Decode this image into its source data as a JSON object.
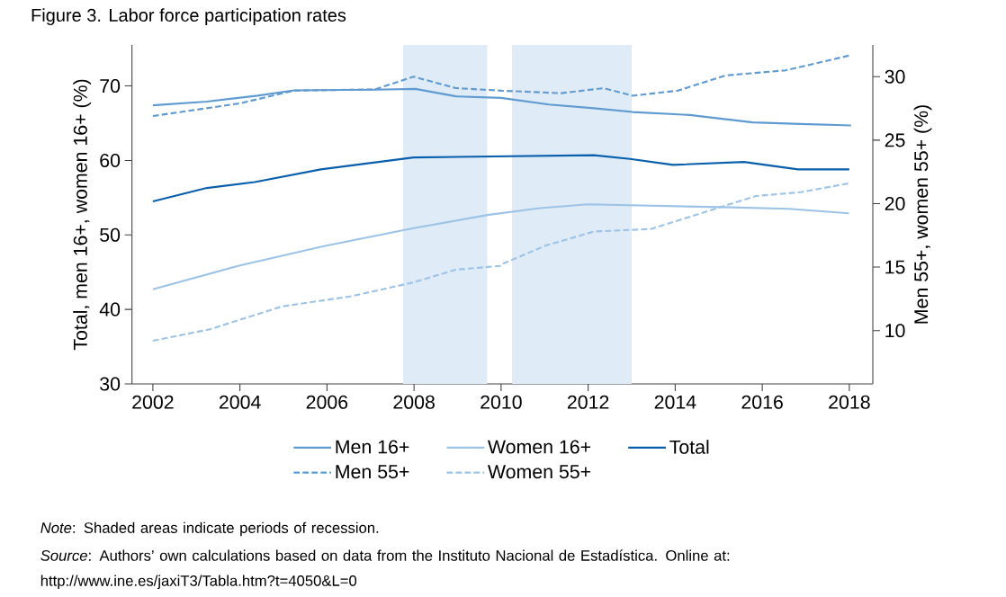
{
  "chart_data": {
    "type": "line",
    "title": "Figure 3. Labor force participation rates",
    "ylabel": "Total, men 16+, women 16+ (%)",
    "y2label": "Men 55+, women 55+ (%)",
    "xlim": [
      2001.52,
      2018.54
    ],
    "xticks": [
      2002,
      2004,
      2006,
      2008,
      2010,
      2012,
      2014,
      2016,
      2018
    ],
    "ylim": [
      30,
      75.5
    ],
    "yticks": [
      30,
      40,
      50,
      60,
      70
    ],
    "y2lim": [
      5.8,
      32.5
    ],
    "y2ticks": [
      10,
      15,
      20,
      25,
      30
    ],
    "legend": "bottom",
    "series": [
      {
        "name": "Men 16+",
        "color": "#5f9bd1",
        "line_style": "solid",
        "axis": "y",
        "x": [
          2002,
          2003.24,
          2004.41,
          2005.24,
          2007.1,
          2008.03,
          2008.96,
          2010.0,
          2011.1,
          2012.13,
          2013.02,
          2014.33,
          2015.78,
          2016.88,
          2018.04
        ],
        "values": [
          67.4,
          67.9,
          68.7,
          69.4,
          69.5,
          69.6,
          68.6,
          68.4,
          67.5,
          67.0,
          66.5,
          66.1,
          65.1,
          64.9,
          64.7
        ]
      },
      {
        "name": "Women 16+",
        "color": "#9dc3e6",
        "line_style": "solid",
        "axis": "y",
        "x": [
          2002,
          2004.0,
          2005.93,
          2007.99,
          2009.72,
          2010.89,
          2011.99,
          2015.3,
          2016.61,
          2017.99
        ],
        "values": [
          42.7,
          45.9,
          48.5,
          50.9,
          52.7,
          53.6,
          54.1,
          53.7,
          53.5,
          52.9
        ]
      },
      {
        "name": "Total",
        "color": "#0a5fac",
        "line_style": "solid",
        "axis": "y",
        "x": [
          2002,
          2003.24,
          2004.34,
          2005.86,
          2007.99,
          2012.13,
          2012.96,
          2013.95,
          2015.58,
          2016.82,
          2018
        ],
        "values": [
          54.5,
          56.3,
          57.1,
          58.8,
          60.4,
          60.7,
          60.2,
          59.4,
          59.8,
          58.8,
          58.8
        ]
      },
      {
        "name": "Men 55+",
        "color": "#5f9bd1",
        "line_style": "dashed",
        "axis": "y2",
        "x": [
          2002,
          2004.0,
          2005.24,
          2007.1,
          2007.99,
          2008.96,
          2010.0,
          2011.38,
          2012.36,
          2013.02,
          2014.06,
          2015.16,
          2016.54,
          2018.04
        ],
        "values": [
          26.9,
          27.9,
          28.9,
          29.0,
          30.0,
          29.1,
          28.9,
          28.7,
          29.1,
          28.5,
          28.9,
          30.1,
          30.5,
          31.7
        ]
      },
      {
        "name": "Women 55+",
        "color": "#9dc3e6",
        "line_style": "dashed",
        "axis": "y2",
        "x": [
          2002,
          2003.31,
          2004.96,
          2006.55,
          2007.99,
          2008.96,
          2010.0,
          2010.06,
          2011.03,
          2012.13,
          2013.44,
          2015.85,
          2016.88,
          2017.99
        ],
        "values": [
          9.2,
          10.1,
          11.9,
          12.7,
          13.8,
          14.8,
          15.1,
          15.3,
          16.7,
          17.8,
          18.0,
          20.6,
          20.9,
          21.6
        ]
      }
    ],
    "bands": [
      {
        "axis": "x",
        "from": 2007.75,
        "to": 2009.68,
        "color": "#dfebf6"
      },
      {
        "axis": "x",
        "from": 2010.25,
        "to": 2013.0,
        "color": "#dfebf6"
      }
    ],
    "annotations": [
      "*Note*: Shaded areas indicate periods of recession.",
      "*Source*: Authors’ own calculations based on data from the Instituto Nacional de Estadística. Online at: http://www.ine.es/jaxiT3/Tabla.htm?t=4050&L=0"
    ]
  }
}
